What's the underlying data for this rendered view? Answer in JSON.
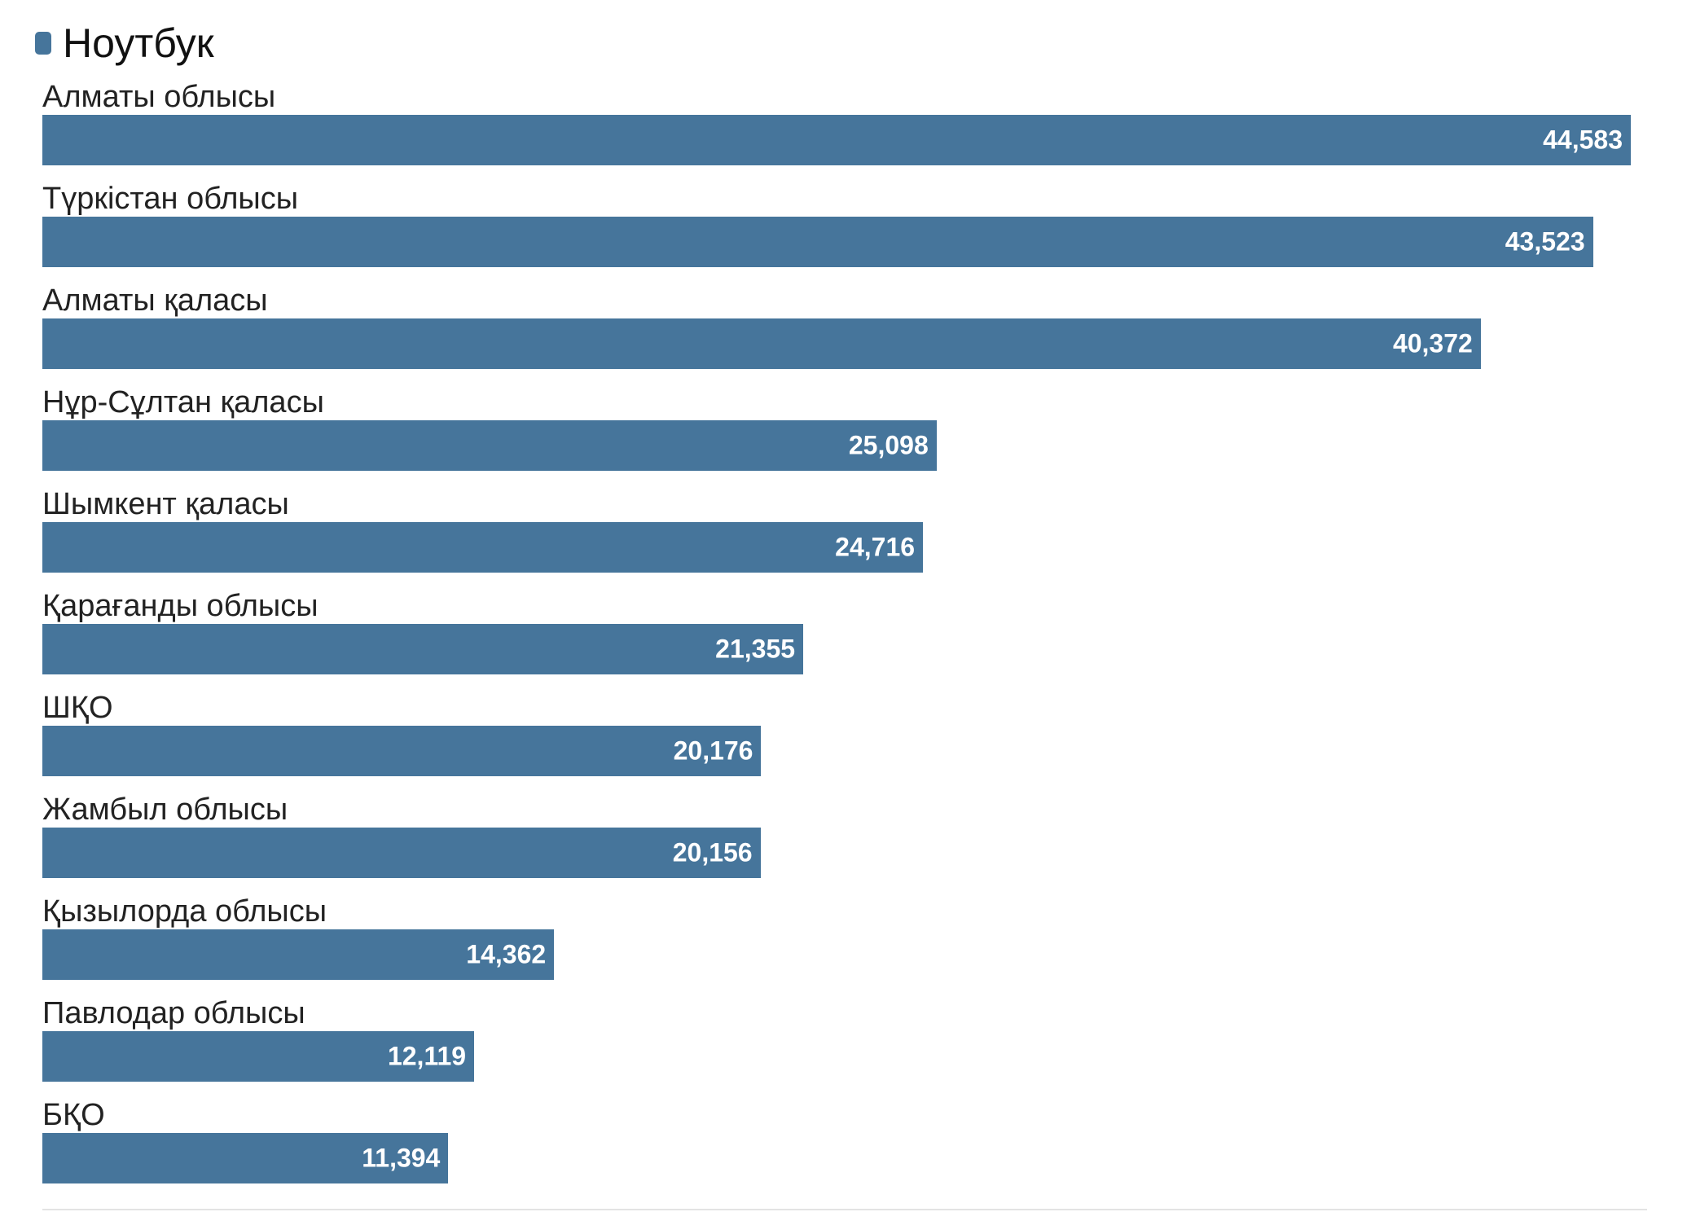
{
  "chart_data": {
    "type": "bar",
    "orientation": "horizontal",
    "legend": {
      "position": "top-left",
      "entries": [
        "Ноутбук"
      ]
    },
    "categories": [
      "Алматы облысы",
      "Түркістан облысы",
      "Алматы қаласы",
      "Нұр-Сұлтан қаласы",
      "Шымкент қаласы",
      "Қарағанды облысы",
      "ШҚО",
      "Жамбыл облысы",
      "Қызылорда облысы",
      "Павлодар облысы",
      "БҚО"
    ],
    "series": [
      {
        "name": "Ноутбук",
        "color": "#46759b",
        "values": [
          44583,
          43523,
          40372,
          25098,
          24716,
          21355,
          20176,
          20156,
          14362,
          12119,
          11394
        ],
        "labels": [
          "44,583",
          "43,523",
          "40,372",
          "25,098",
          "24,716",
          "21,355",
          "20,176",
          "20,156",
          "14,362",
          "12,119",
          "11,394"
        ]
      }
    ],
    "xlim": [
      0,
      44583
    ],
    "grid": false
  }
}
